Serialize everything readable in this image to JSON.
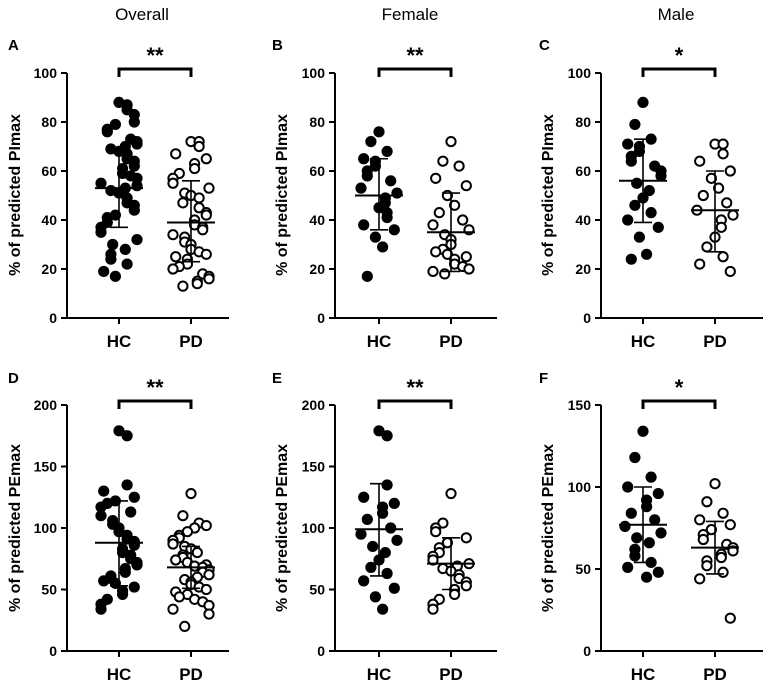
{
  "figure": {
    "column_titles": [
      "Overall",
      "Female",
      "Male"
    ]
  },
  "chart_data": [
    {
      "panel": "A",
      "type": "scatter",
      "subtype": "dot-plot-mean-sd",
      "ylabel": "% of predicted PImax",
      "ylim": [
        0,
        100
      ],
      "yticks": [
        0,
        20,
        40,
        60,
        80,
        100
      ],
      "categories": [
        "HC",
        "PD"
      ],
      "significance": "**",
      "series": [
        {
          "name": "HC",
          "filled": true,
          "mean": 53,
          "sd_low": 37,
          "sd_high": 69,
          "values": [
            88,
            87,
            85,
            83,
            80,
            79,
            77,
            76,
            73,
            72,
            71,
            70,
            69,
            68,
            67,
            65,
            64,
            62,
            61,
            59,
            58,
            57,
            55,
            54,
            53,
            52,
            51,
            49,
            47,
            46,
            44,
            42,
            41,
            39,
            37,
            35,
            32,
            30,
            28,
            26,
            24,
            22,
            19,
            17
          ]
        },
        {
          "name": "PD",
          "filled": false,
          "mean": 39,
          "sd_low": 23,
          "sd_high": 56,
          "values": [
            72,
            72,
            70,
            67,
            65,
            63,
            61,
            59,
            57,
            55,
            53,
            51,
            50,
            49,
            47,
            45,
            43,
            42,
            40,
            38,
            37,
            36,
            34,
            33,
            31,
            30,
            28,
            27,
            26,
            25,
            24,
            22,
            21,
            20,
            18,
            17,
            16,
            15,
            14,
            13
          ]
        }
      ]
    },
    {
      "panel": "B",
      "type": "scatter",
      "subtype": "dot-plot-mean-sd",
      "ylabel": "% of predicted PImax",
      "ylim": [
        0,
        100
      ],
      "yticks": [
        0,
        20,
        40,
        60,
        80,
        100
      ],
      "categories": [
        "HC",
        "PD"
      ],
      "significance": "**",
      "series": [
        {
          "name": "HC",
          "filled": true,
          "mean": 50,
          "sd_low": 36,
          "sd_high": 65,
          "values": [
            76,
            72,
            68,
            65,
            64,
            62,
            60,
            58,
            56,
            53,
            51,
            49,
            47,
            45,
            43,
            41,
            38,
            36,
            33,
            29,
            17
          ]
        },
        {
          "name": "PD",
          "filled": false,
          "mean": 35,
          "sd_low": 19,
          "sd_high": 51,
          "values": [
            72,
            64,
            62,
            57,
            54,
            50,
            46,
            43,
            40,
            38,
            36,
            34,
            32,
            30,
            28,
            27,
            26,
            25,
            24,
            22,
            21,
            20,
            19,
            18
          ]
        }
      ]
    },
    {
      "panel": "C",
      "type": "scatter",
      "subtype": "dot-plot-mean-sd",
      "ylabel": "% of predicted PImax",
      "ylim": [
        0,
        100
      ],
      "yticks": [
        0,
        20,
        40,
        60,
        80,
        100
      ],
      "categories": [
        "HC",
        "PD"
      ],
      "significance": "*",
      "series": [
        {
          "name": "HC",
          "filled": true,
          "mean": 56,
          "sd_low": 39,
          "sd_high": 73,
          "values": [
            88,
            79,
            73,
            71,
            70,
            68,
            66,
            64,
            62,
            60,
            58,
            55,
            52,
            49,
            46,
            43,
            40,
            37,
            33,
            26,
            24
          ]
        },
        {
          "name": "PD",
          "filled": false,
          "mean": 44,
          "sd_low": 27,
          "sd_high": 60,
          "values": [
            71,
            71,
            67,
            64,
            60,
            57,
            53,
            50,
            47,
            44,
            42,
            40,
            37,
            33,
            29,
            25,
            22,
            19
          ]
        }
      ]
    },
    {
      "panel": "D",
      "type": "scatter",
      "subtype": "dot-plot-mean-sd",
      "ylabel": "% of predicted PEmax",
      "ylim": [
        0,
        200
      ],
      "yticks": [
        0,
        50,
        100,
        150,
        200
      ],
      "categories": [
        "HC",
        "PD"
      ],
      "significance": "**",
      "series": [
        {
          "name": "HC",
          "filled": true,
          "mean": 88,
          "sd_low": 53,
          "sd_high": 122,
          "values": [
            179,
            175,
            135,
            130,
            125,
            122,
            120,
            117,
            113,
            110,
            106,
            103,
            100,
            97,
            94,
            91,
            89,
            86,
            83,
            80,
            78,
            75,
            72,
            70,
            67,
            64,
            61,
            59,
            57,
            55,
            52,
            49,
            46,
            42,
            38,
            34
          ]
        },
        {
          "name": "PD",
          "filled": false,
          "mean": 68,
          "sd_low": 51,
          "sd_high": 85,
          "values": [
            128,
            110,
            104,
            102,
            100,
            97,
            94,
            92,
            90,
            87,
            85,
            83,
            80,
            78,
            76,
            74,
            72,
            70,
            69,
            68,
            66,
            64,
            62,
            60,
            58,
            56,
            54,
            52,
            50,
            48,
            46,
            44,
            42,
            40,
            37,
            34,
            30,
            20
          ]
        }
      ]
    },
    {
      "panel": "E",
      "type": "scatter",
      "subtype": "dot-plot-mean-sd",
      "ylabel": "% of predicted PEmax",
      "ylim": [
        0,
        200
      ],
      "yticks": [
        0,
        50,
        100,
        150,
        200
      ],
      "categories": [
        "HC",
        "PD"
      ],
      "significance": "**",
      "series": [
        {
          "name": "HC",
          "filled": true,
          "mean": 99,
          "sd_low": 61,
          "sd_high": 136,
          "values": [
            179,
            175,
            135,
            125,
            120,
            117,
            112,
            107,
            100,
            95,
            90,
            85,
            80,
            74,
            68,
            63,
            57,
            51,
            44,
            34
          ]
        },
        {
          "name": "PD",
          "filled": false,
          "mean": 71,
          "sd_low": 50,
          "sd_high": 92,
          "values": [
            128,
            104,
            100,
            97,
            92,
            88,
            84,
            80,
            77,
            74,
            71,
            69,
            67,
            65,
            62,
            59,
            56,
            53,
            50,
            46,
            42,
            38,
            34
          ]
        }
      ]
    },
    {
      "panel": "F",
      "type": "scatter",
      "subtype": "dot-plot-mean-sd",
      "ylabel": "% of predicted PEmax",
      "ylim": [
        0,
        150
      ],
      "yticks": [
        0,
        50,
        100,
        150
      ],
      "categories": [
        "HC",
        "PD"
      ],
      "significance": "*",
      "series": [
        {
          "name": "HC",
          "filled": true,
          "mean": 77,
          "sd_low": 54,
          "sd_high": 100,
          "values": [
            134,
            118,
            106,
            100,
            96,
            92,
            88,
            84,
            80,
            76,
            72,
            69,
            66,
            62,
            58,
            54,
            51,
            48,
            45
          ]
        },
        {
          "name": "PD",
          "filled": false,
          "mean": 63,
          "sd_low": 47,
          "sd_high": 79,
          "values": [
            102,
            91,
            84,
            80,
            77,
            74,
            71,
            68,
            65,
            63,
            61,
            59,
            57,
            55,
            52,
            48,
            44,
            20
          ]
        }
      ]
    }
  ]
}
